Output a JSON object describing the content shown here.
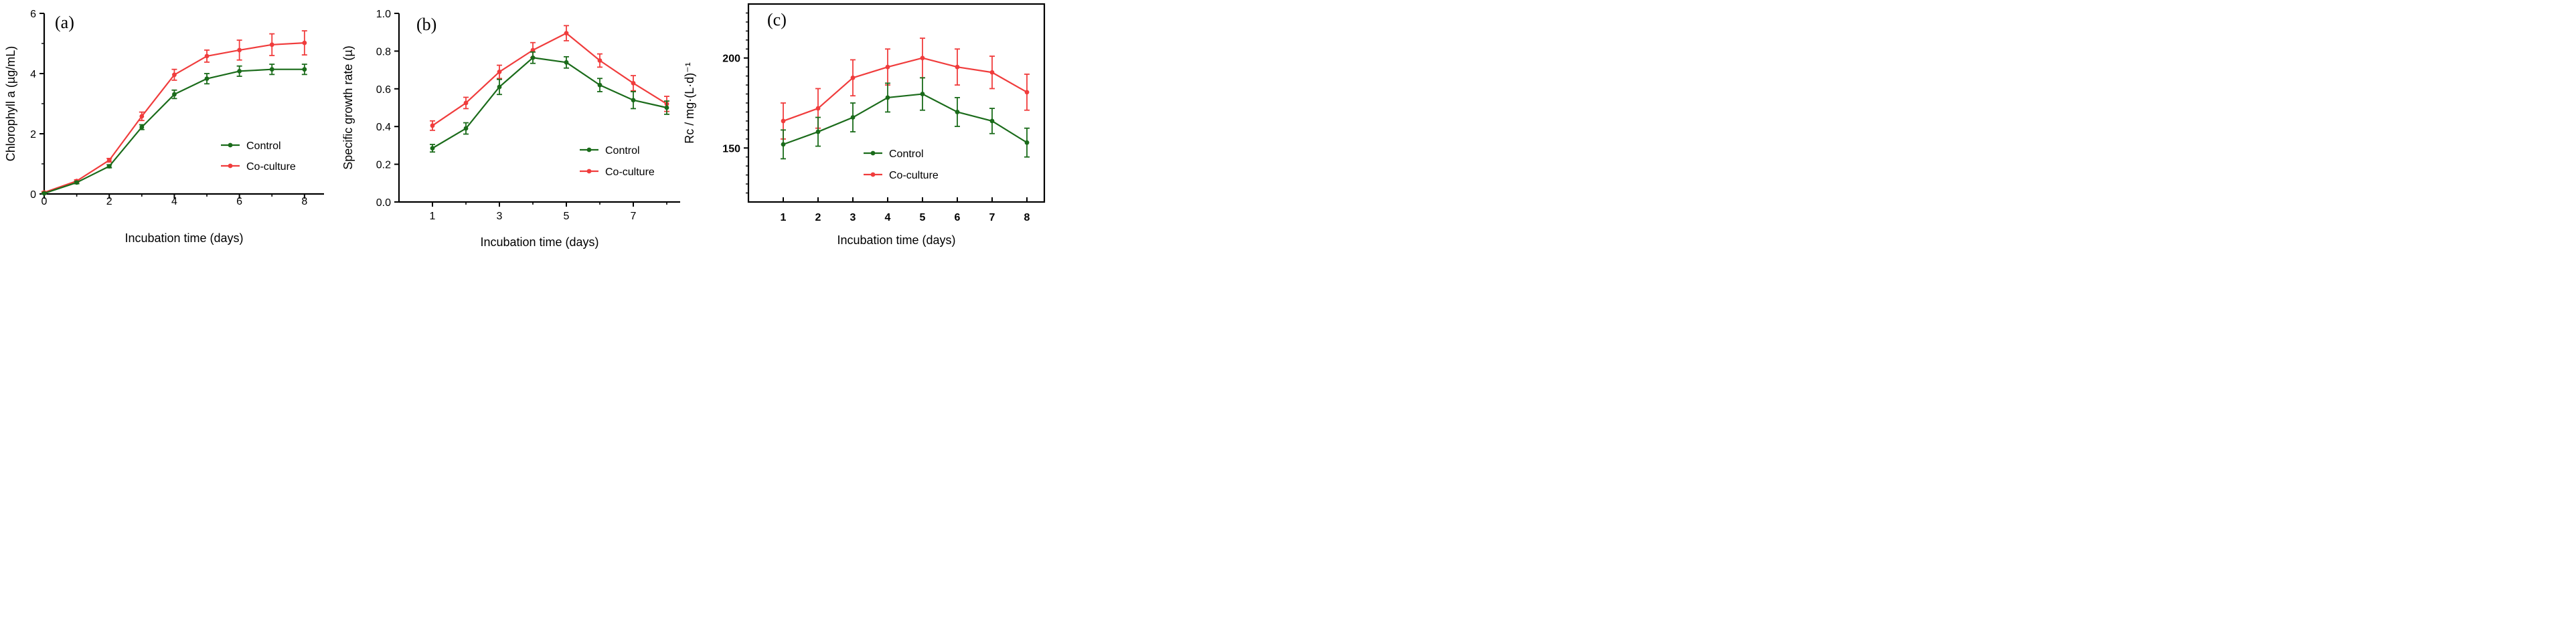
{
  "colors": {
    "control": "#1a6b1a",
    "coculture": "#f03c3c",
    "axis": "#000000"
  },
  "chart_data": [
    {
      "type": "line",
      "panel_label": "(a)",
      "xlabel": "Incubation time (days)",
      "ylabel": "Chlorophyll a (µg/mL)",
      "xlim": [
        0,
        8.6
      ],
      "ylim": [
        0,
        6
      ],
      "x_ticks": [
        0,
        2,
        4,
        6,
        8
      ],
      "x_tick_labels": [
        "0",
        "2",
        "4",
        "6",
        "8"
      ],
      "y_ticks": [
        0,
        2,
        4,
        6
      ],
      "y_tick_labels": [
        "0",
        "2",
        "4",
        "6"
      ],
      "x_minor_ticks": [
        1,
        3,
        5,
        7
      ],
      "y_minor_ticks": [
        1,
        3,
        5
      ],
      "x": [
        0,
        1,
        2,
        3,
        4,
        5,
        6,
        7,
        8
      ],
      "legend": {
        "position": "center-right"
      },
      "series": [
        {
          "name": "Control",
          "color_key": "control",
          "values": [
            0.02,
            0.38,
            0.92,
            2.22,
            3.31,
            3.83,
            4.08,
            4.14,
            4.14
          ],
          "errors": [
            0.02,
            0.04,
            0.05,
            0.08,
            0.14,
            0.17,
            0.17,
            0.17,
            0.17
          ]
        },
        {
          "name": "Co-culture",
          "color_key": "coculture",
          "values": [
            0.05,
            0.43,
            1.12,
            2.58,
            3.96,
            4.58,
            4.78,
            4.96,
            5.02
          ],
          "errors": [
            0.03,
            0.04,
            0.06,
            0.14,
            0.18,
            0.2,
            0.33,
            0.36,
            0.4
          ]
        }
      ]
    },
    {
      "type": "line",
      "panel_label": "(b)",
      "xlabel": "Incubation time (days)",
      "ylabel": "Specific growth rate (µ)",
      "xlim": [
        0,
        8.4
      ],
      "ylim": [
        0,
        1.0
      ],
      "x_ticks": [
        1,
        3,
        5,
        7
      ],
      "x_tick_labels": [
        "1",
        "3",
        "5",
        "7"
      ],
      "y_ticks": [
        0,
        0.2,
        0.4,
        0.6,
        0.8,
        1.0
      ],
      "y_tick_labels": [
        "0.0",
        "0.2",
        "0.4",
        "0.6",
        "0.8",
        "1.0"
      ],
      "x_minor_ticks": [
        2,
        4,
        6,
        8
      ],
      "y_minor_ticks": [],
      "x": [
        1,
        2,
        3,
        4,
        5,
        6,
        7,
        8
      ],
      "legend": {
        "position": "bottom-right"
      },
      "series": [
        {
          "name": "Control",
          "color_key": "control",
          "values": [
            0.285,
            0.39,
            0.61,
            0.765,
            0.74,
            0.62,
            0.54,
            0.5
          ],
          "errors": [
            0.02,
            0.03,
            0.04,
            0.03,
            0.03,
            0.035,
            0.045,
            0.035
          ]
        },
        {
          "name": "Co-culture",
          "color_key": "coculture",
          "values": [
            0.405,
            0.525,
            0.69,
            0.805,
            0.895,
            0.75,
            0.63,
            0.52
          ],
          "errors": [
            0.025,
            0.03,
            0.035,
            0.04,
            0.04,
            0.035,
            0.04,
            0.04
          ]
        }
      ]
    },
    {
      "type": "line",
      "panel_label": "(c)",
      "xlabel": "Incubation time (days)",
      "ylabel": "Rc / mg·(L·d)⁻¹",
      "xlim": [
        0,
        8.5
      ],
      "ylim": [
        120,
        230
      ],
      "x_ticks": [
        1,
        2,
        3,
        4,
        5,
        6,
        7,
        8
      ],
      "x_tick_labels": [
        "1",
        "2",
        "3",
        "4",
        "5",
        "6",
        "7",
        "8"
      ],
      "y_ticks": [
        150,
        200
      ],
      "y_tick_labels": [
        "150",
        "200"
      ],
      "x_minor_ticks": [],
      "y_minor_ticks": [
        125,
        130,
        135,
        140,
        145,
        155,
        160,
        165,
        170,
        175,
        180,
        185,
        190,
        195,
        205,
        210,
        215,
        220,
        225
      ],
      "x": [
        1,
        2,
        3,
        4,
        5,
        6,
        7,
        8
      ],
      "legend": {
        "position": "bottom-center"
      },
      "series": [
        {
          "name": "Control",
          "color_key": "control",
          "values": [
            152,
            159,
            167,
            178,
            180,
            170,
            165,
            153
          ],
          "errors": [
            8,
            8,
            8,
            8,
            9,
            8,
            7,
            8
          ]
        },
        {
          "name": "Co-culture",
          "color_key": "coculture",
          "values": [
            165,
            172,
            189,
            195,
            200,
            195,
            192,
            181
          ],
          "errors": [
            10,
            11,
            10,
            10,
            11,
            10,
            9,
            10
          ]
        }
      ]
    }
  ]
}
